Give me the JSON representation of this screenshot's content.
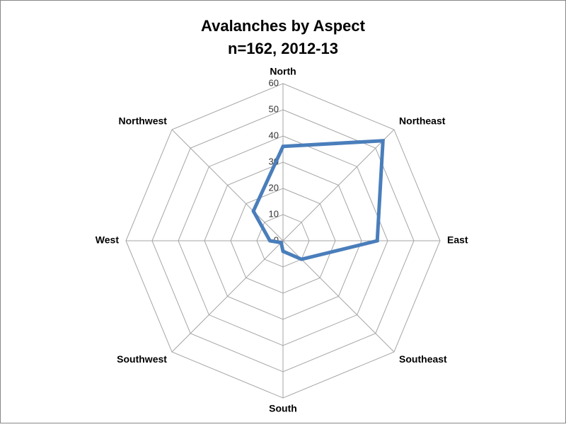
{
  "chart_data": {
    "type": "radar",
    "title": "Avalanches by Aspect",
    "subtitle": "n=162, 2012-13",
    "categories": [
      "North",
      "Northeast",
      "East",
      "Southeast",
      "South",
      "Southwest",
      "West",
      "Northwest"
    ],
    "series": [
      {
        "color": "#4a7ebb",
        "values": [
          36,
          54,
          36,
          10,
          4,
          1,
          5,
          16
        ]
      }
    ],
    "ylim": [
      0,
      60
    ],
    "yticks": [
      0,
      10,
      20,
      30,
      40,
      50,
      60
    ],
    "grid": true
  }
}
